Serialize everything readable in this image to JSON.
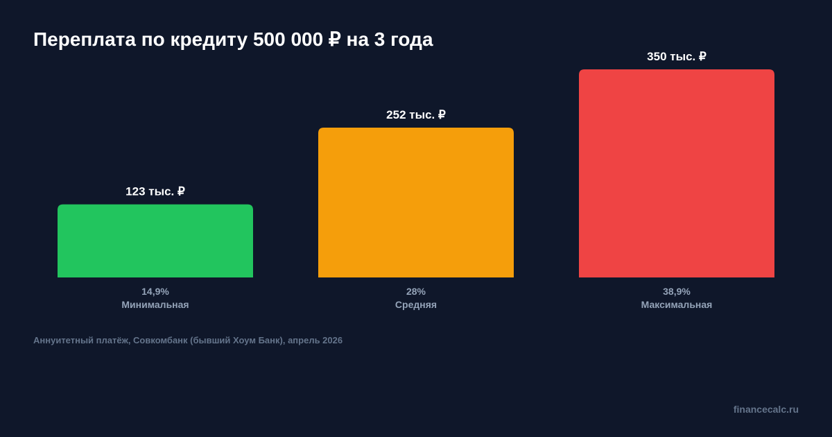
{
  "chart_data": {
    "type": "bar",
    "title": "Переплата по кредиту 500 000 ₽ на 3 года",
    "categories": [
      "Минимальная",
      "Средняя",
      "Максимальная"
    ],
    "rates": [
      "14,9%",
      "28%",
      "38,9%"
    ],
    "values": [
      123,
      252,
      350
    ],
    "value_labels": [
      "123 тыс. ₽",
      "252 тыс. ₽",
      "350 тыс. ₽"
    ],
    "colors": [
      "#22c55e",
      "#f59e0b",
      "#ef4444"
    ],
    "unit": "тыс. ₽",
    "ylim": [
      0,
      350
    ],
    "grid": false
  },
  "footnote": "Аннуитетный платёж, Совкомбанк (бывший Хоум Банк), апрель 2026",
  "brand": "financecalc.ru"
}
